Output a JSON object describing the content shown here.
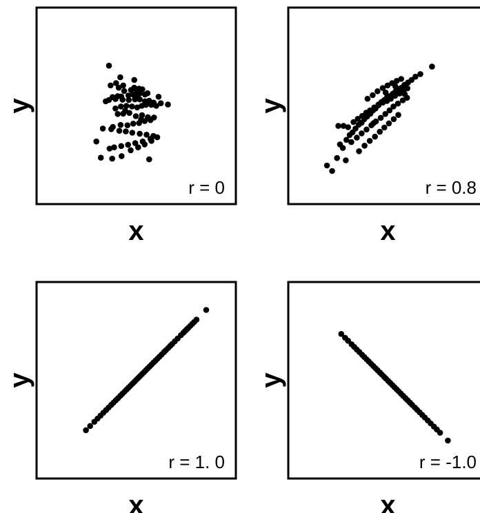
{
  "chart_data": [
    {
      "type": "scatter",
      "xlabel": "x",
      "ylabel": "y",
      "annotation": "r = 0",
      "xlim": [
        -3,
        3
      ],
      "ylim": [
        -3,
        3
      ],
      "x": [
        -0.83,
        -0.61,
        -0.78,
        -0.48,
        -0.39,
        -0.53,
        -0.15,
        -0.05,
        0.02,
        0.1,
        0.2,
        0.28,
        0.36,
        0.12,
        0.02,
        -0.09,
        -0.23,
        -0.36,
        -0.45,
        -0.56,
        -0.72,
        -0.83,
        -0.93,
        -0.63,
        -0.41,
        -0.22,
        -0.03,
        0.12,
        0.28,
        0.41,
        0.55,
        0.7,
        0.77,
        0.63,
        0.48,
        0.31,
        0.18,
        0.04,
        -0.12,
        -0.29,
        -0.46,
        -0.63,
        -0.56,
        -0.39,
        -0.2,
        0.0,
        0.19,
        0.37,
        0.56,
        0.45,
        0.27,
        0.1,
        -0.08,
        -0.26,
        -0.47,
        -0.71,
        -1.02,
        -0.76,
        -0.51,
        -0.31,
        -0.11,
        0.12,
        0.33,
        0.54,
        0.66,
        0.45,
        0.21,
        -0.02,
        -0.24,
        -0.45,
        -0.67,
        -0.81,
        -1.22,
        -1.08,
        -0.73,
        -0.44,
        -0.16,
        0.07,
        0.27,
        0.48,
        0.99,
        0.41,
        -0.05,
        0.16,
        -0.33
      ],
      "y": [
        1.24,
        0.7,
        0.63,
        0.88,
        0.63,
        0.56,
        0.49,
        0.56,
        0.49,
        0.53,
        0.51,
        0.35,
        0.39,
        0.38,
        0.32,
        0.35,
        0.32,
        0.46,
        0.29,
        0.3,
        0.27,
        0.18,
        0.14,
        0.21,
        0.19,
        0.18,
        0.2,
        0.2,
        0.14,
        0.16,
        0.1,
        0.28,
        0.08,
        0.0,
        0.03,
        0.03,
        0.0,
        -0.05,
        -0.02,
        0.0,
        -0.02,
        -0.08,
        -0.25,
        -0.24,
        -0.22,
        -0.32,
        -0.29,
        -0.35,
        -0.36,
        -0.44,
        -0.47,
        -0.53,
        -0.55,
        -0.6,
        -0.59,
        -0.65,
        -0.7,
        -0.72,
        -0.77,
        -0.79,
        -0.83,
        -0.86,
        -0.89,
        -0.93,
        -0.97,
        -1.02,
        -1.1,
        -1.15,
        -1.2,
        -1.24,
        -1.28,
        -1.32,
        -1.1,
        -1.6,
        -1.63,
        -1.55,
        -1.37,
        -1.28,
        -1.19,
        -1.08,
        0.04,
        -1.65,
        0.8,
        -0.42,
        -0.15
      ]
    },
    {
      "type": "scatter",
      "xlabel": "x",
      "ylabel": "y",
      "annotation": "r = 0.8",
      "xlim": [
        -3,
        3
      ],
      "ylim": [
        -3,
        3
      ],
      "x": [
        -1.87,
        -1.71,
        -1.56,
        -1.47,
        -1.38,
        -1.27,
        -1.17,
        -1.08,
        -0.99,
        -0.89,
        -0.8,
        -0.72,
        -0.63,
        -0.53,
        -0.45,
        -0.37,
        -0.28,
        -0.19,
        -0.1,
        -0.02,
        0.07,
        0.16,
        0.24,
        0.33,
        0.43,
        0.52,
        0.63,
        0.74,
        0.86,
        1.01,
        1.37,
        -1.36,
        -1.22,
        -1.05,
        -0.92,
        -0.78,
        -0.66,
        -0.54,
        -0.41,
        -0.28,
        -0.15,
        -0.02,
        0.1,
        0.23,
        0.37,
        0.49,
        0.61,
        -1.12,
        -0.95,
        -0.8,
        -0.65,
        -0.5,
        -0.36,
        -0.21,
        -0.07,
        0.06,
        0.18,
        0.32,
        0.47,
        0.6,
        -0.88,
        -0.71,
        -0.55,
        -0.39,
        -0.24,
        -0.1,
        0.04,
        0.19,
        0.33,
        -0.62,
        -0.46,
        -0.31,
        -0.15,
        0.0,
        0.14,
        0.28,
        0.42,
        -1.52,
        -1.29,
        -0.06,
        0.24,
        -0.43,
        0.53
      ],
      "y": [
        -1.84,
        -2.01,
        -1.61,
        -1.19,
        -1.3,
        -1.05,
        -0.9,
        -0.82,
        -0.7,
        -0.58,
        -0.52,
        -0.41,
        -0.33,
        -0.24,
        -0.14,
        -0.08,
        0.04,
        0.12,
        0.18,
        0.26,
        0.3,
        0.37,
        0.44,
        0.52,
        0.56,
        0.65,
        0.72,
        0.8,
        0.9,
        0.98,
        1.21,
        -0.62,
        -0.66,
        -0.5,
        -0.4,
        -0.31,
        -0.21,
        -0.14,
        -0.05,
        0.02,
        0.1,
        0.15,
        0.22,
        0.31,
        0.38,
        0.45,
        0.54,
        -1.12,
        -0.98,
        -0.85,
        -0.73,
        -0.6,
        -0.48,
        -0.37,
        -0.25,
        -0.14,
        -0.02,
        0.07,
        0.17,
        0.25,
        -1.4,
        -1.23,
        -1.08,
        -0.95,
        -0.8,
        -0.67,
        -0.54,
        -0.41,
        -0.28,
        0.22,
        0.33,
        0.45,
        0.55,
        0.63,
        0.7,
        0.77,
        0.83,
        -0.62,
        -1.68,
        0.41,
        0.6,
        -0.53,
        0.36
      ]
    },
    {
      "type": "scatter",
      "xlabel": "x",
      "ylabel": "y",
      "annotation": "r = 1. 0",
      "xlim": [
        -3,
        3
      ],
      "ylim": [
        -3,
        3
      ],
      "x": [
        -1.54,
        -1.41,
        -1.28,
        -1.18,
        -1.09,
        -1.0,
        -0.92,
        -0.84,
        -0.76,
        -0.69,
        -0.62,
        -0.55,
        -0.48,
        -0.42,
        -0.35,
        -0.29,
        -0.23,
        -0.17,
        -0.11,
        -0.05,
        0.01,
        0.07,
        0.13,
        0.19,
        0.25,
        0.31,
        0.37,
        0.43,
        0.49,
        0.55,
        0.61,
        0.67,
        0.73,
        0.8,
        0.87,
        0.93,
        1.0,
        1.06,
        1.12,
        1.2,
        1.29,
        1.39,
        1.47,
        1.52,
        1.57,
        1.62,
        1.68,
        1.74,
        1.8,
        1.87,
        2.17
      ],
      "y": [
        -1.54,
        -1.41,
        -1.28,
        -1.18,
        -1.09,
        -1.0,
        -0.92,
        -0.84,
        -0.76,
        -0.69,
        -0.62,
        -0.55,
        -0.48,
        -0.42,
        -0.35,
        -0.29,
        -0.23,
        -0.17,
        -0.11,
        -0.05,
        0.01,
        0.07,
        0.13,
        0.19,
        0.25,
        0.31,
        0.37,
        0.43,
        0.49,
        0.55,
        0.61,
        0.67,
        0.73,
        0.8,
        0.87,
        0.93,
        1.0,
        1.06,
        1.12,
        1.2,
        1.29,
        1.39,
        1.47,
        1.52,
        1.57,
        1.62,
        1.68,
        1.74,
        1.8,
        1.87,
        2.17
      ]
    },
    {
      "type": "scatter",
      "xlabel": "x",
      "ylabel": "y",
      "annotation": "r = -1.0",
      "xlim": [
        -3,
        3
      ],
      "ylim": [
        -3,
        3
      ],
      "x": [
        -1.43,
        -1.31,
        -1.22,
        -1.11,
        -1.03,
        -0.95,
        -0.87,
        -0.79,
        -0.72,
        -0.65,
        -0.58,
        -0.51,
        -0.44,
        -0.37,
        -0.31,
        -0.24,
        -0.18,
        -0.11,
        -0.05,
        0.02,
        0.08,
        0.15,
        0.21,
        0.28,
        0.34,
        0.41,
        0.48,
        0.55,
        0.62,
        0.69,
        0.76,
        0.84,
        0.91,
        0.99,
        1.07,
        1.15,
        1.24,
        1.33,
        1.43,
        1.52,
        1.62,
        1.86
      ],
      "y": [
        1.43,
        1.31,
        1.22,
        1.11,
        1.03,
        0.95,
        0.87,
        0.79,
        0.72,
        0.65,
        0.58,
        0.51,
        0.44,
        0.37,
        0.31,
        0.24,
        0.18,
        0.11,
        0.05,
        -0.02,
        -0.08,
        -0.15,
        -0.21,
        -0.28,
        -0.34,
        -0.41,
        -0.48,
        -0.55,
        -0.62,
        -0.69,
        -0.76,
        -0.84,
        -0.91,
        -0.99,
        -1.07,
        -1.15,
        -1.24,
        -1.33,
        -1.43,
        -1.52,
        -1.62,
        -1.86
      ]
    }
  ]
}
